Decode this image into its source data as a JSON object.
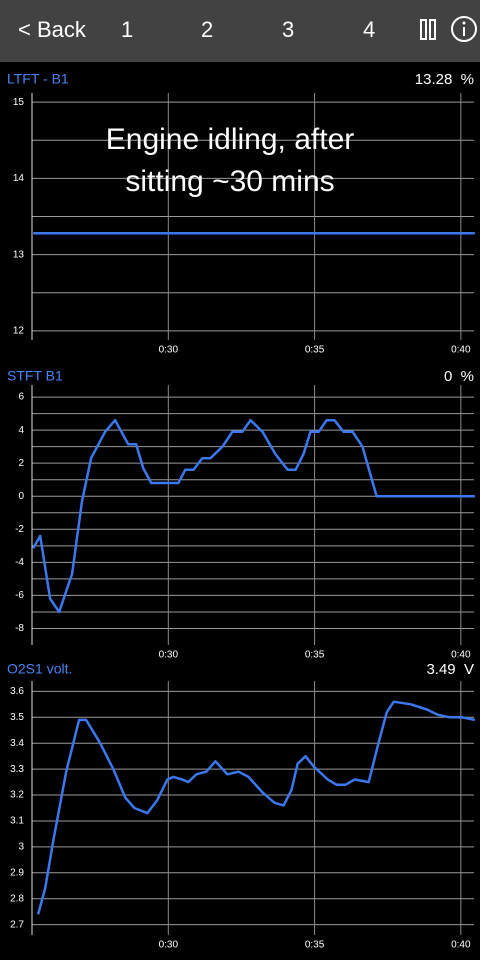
{
  "header": {
    "back": "< Back",
    "tabs": [
      "1",
      "2",
      "3",
      "4"
    ]
  },
  "chart_data": [
    {
      "type": "line",
      "title": "LTFT - B1",
      "readout": "13.28  %",
      "annotation": [
        "Engine idling, after",
        "sitting ~30 mins"
      ],
      "x": [
        25.38,
        40.48
      ],
      "values": [
        13.28,
        13.28
      ],
      "color": "#3b78f0",
      "xlim": [
        25.34,
        40.45
      ],
      "ylim": [
        11.88,
        15.12
      ],
      "xticks": [
        {
          "value": 30,
          "label": "0:30"
        },
        {
          "value": 35,
          "label": "0:35"
        },
        {
          "value": 40,
          "label": "0:40"
        }
      ],
      "yticks": [
        12,
        13,
        14,
        15
      ],
      "grid": true,
      "minor_grid": true
    },
    {
      "type": "line",
      "title": "STFT B1",
      "readout": "0  %",
      "x": [
        25.38,
        25.62,
        25.96,
        26.27,
        26.71,
        27.05,
        27.36,
        27.84,
        28.18,
        28.63,
        28.9,
        29.14,
        29.42,
        30.34,
        30.58,
        30.86,
        31.16,
        31.44,
        31.85,
        32.19,
        32.53,
        32.81,
        33.22,
        33.66,
        34.08,
        34.35,
        34.62,
        34.86,
        35.14,
        35.41,
        35.68,
        35.99,
        36.3,
        36.64,
        37.12,
        40.48
      ],
      "values": [
        -3.15,
        -2.4,
        -6.2,
        -7.0,
        -4.7,
        -0.3,
        2.3,
        3.9,
        4.6,
        3.15,
        3.15,
        1.7,
        0.8,
        0.8,
        1.6,
        1.6,
        2.3,
        2.3,
        3.0,
        3.9,
        3.9,
        4.6,
        3.9,
        2.55,
        1.6,
        1.6,
        2.55,
        3.9,
        3.9,
        4.6,
        4.6,
        3.9,
        3.9,
        3.0,
        0,
        0
      ],
      "color": "#3b78f0",
      "xlim": [
        25.34,
        40.45
      ],
      "ylim": [
        -9.0,
        6.73
      ],
      "xticks": [
        {
          "value": 30,
          "label": "0:30"
        },
        {
          "value": 35,
          "label": "0:35"
        },
        {
          "value": 40,
          "label": "0:40"
        }
      ],
      "yticks": [
        -8,
        -6,
        -4,
        -2,
        0,
        2,
        4,
        6
      ],
      "grid": true,
      "minor_grid": true
    },
    {
      "type": "line",
      "title": "O2S1 volt.",
      "readout": "3.49  V",
      "x": [
        25.55,
        25.79,
        26.06,
        26.51,
        26.95,
        27.19,
        27.67,
        28.12,
        28.53,
        28.84,
        29.28,
        29.62,
        29.97,
        30.17,
        30.48,
        30.68,
        30.96,
        31.3,
        31.61,
        32.02,
        32.4,
        32.74,
        33.22,
        33.63,
        33.94,
        34.21,
        34.42,
        34.69,
        34.97,
        35.45,
        35.75,
        36.06,
        36.37,
        36.85,
        37.16,
        37.47,
        37.71,
        38.29,
        38.84,
        39.21,
        39.62,
        40.03,
        40.48
      ],
      "values": [
        2.74,
        2.84,
        3.02,
        3.29,
        3.49,
        3.49,
        3.4,
        3.3,
        3.19,
        3.15,
        3.13,
        3.18,
        3.26,
        3.27,
        3.26,
        3.25,
        3.28,
        3.29,
        3.33,
        3.28,
        3.29,
        3.27,
        3.21,
        3.17,
        3.16,
        3.22,
        3.32,
        3.35,
        3.31,
        3.26,
        3.24,
        3.24,
        3.26,
        3.25,
        3.39,
        3.52,
        3.56,
        3.55,
        3.53,
        3.51,
        3.5,
        3.5,
        3.49
      ],
      "color": "#3b78f0",
      "xlim": [
        25.34,
        40.45
      ],
      "ylim": [
        2.66,
        3.64
      ],
      "xticks": [
        {
          "value": 30,
          "label": "0:30"
        },
        {
          "value": 35,
          "label": "0:35"
        },
        {
          "value": 40,
          "label": "0:40"
        }
      ],
      "yticks": [
        2.7,
        2.8,
        2.9,
        3,
        3.1,
        3.2,
        3.3,
        3.4,
        3.5,
        3.6
      ],
      "grid": true,
      "minor_grid": false
    }
  ]
}
